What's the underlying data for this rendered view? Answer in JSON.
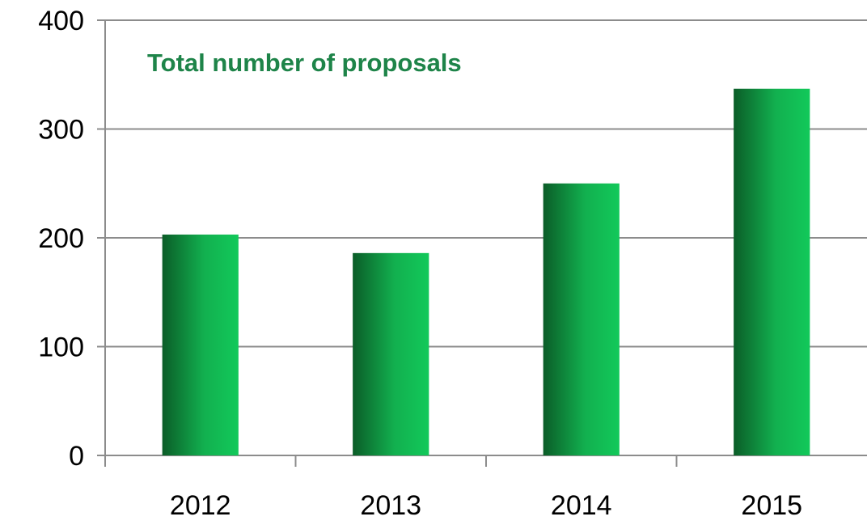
{
  "chart_data": {
    "type": "bar",
    "title": "Total number of proposals",
    "categories": [
      "2012",
      "2013",
      "2014",
      "2015"
    ],
    "values": [
      203,
      186,
      250,
      337
    ],
    "ylim": [
      0,
      400
    ],
    "yticks": [
      "0",
      "100",
      "200",
      "300",
      "400"
    ],
    "xlabel": "",
    "ylabel": "",
    "grid": true,
    "legend": "none"
  },
  "colors": {
    "title": "#1e8449",
    "bar_dark": "#0b5d28",
    "bar_mid": "#12b04f",
    "bar_light": "#12c95a",
    "grid": "#8c8c8c",
    "axis": "#8c8c8c"
  }
}
